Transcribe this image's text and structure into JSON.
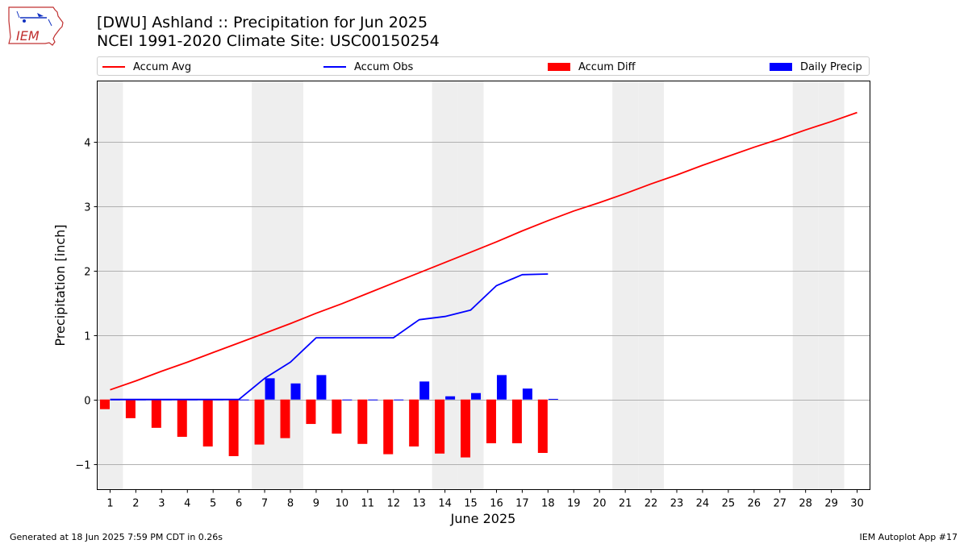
{
  "header": {
    "title_line1": "[DWU] Ashland :: Precipitation for Jun 2025",
    "title_line2": "NCEI 1991-2020 Climate Site: USC00150254"
  },
  "logo": {
    "text": "IEM",
    "icon": "iowa-state-outline-logo"
  },
  "footer": {
    "left": "Generated at 18 Jun 2025 7:59 PM CDT in 0.26s",
    "right": "IEM Autoplot App #17"
  },
  "colors": {
    "accum_avg": "#ff0000",
    "accum_obs": "#0000ff",
    "accum_diff": "#ff0000",
    "daily_precip": "#0000ff",
    "weekend_shading": "#eeeeee",
    "grid": "#b0b0b0"
  },
  "chart_data": {
    "type": "bar",
    "title": "[DWU] Ashland :: Precipitation for Jun 2025",
    "subtitle": "NCEI 1991-2020 Climate Site: USC00150254",
    "xlabel": "June 2025",
    "ylabel": "Precipitation [inch]",
    "xlim": [
      0.5,
      30.5
    ],
    "ylim": [
      -1.4,
      4.95
    ],
    "yticks": [
      -1,
      0,
      1,
      2,
      3,
      4
    ],
    "ytick_labels": [
      "−1",
      "0",
      "1",
      "2",
      "3",
      "4"
    ],
    "days": [
      1,
      2,
      3,
      4,
      5,
      6,
      7,
      8,
      9,
      10,
      11,
      12,
      13,
      14,
      15,
      16,
      17,
      18,
      19,
      20,
      21,
      22,
      23,
      24,
      25,
      26,
      27,
      28,
      29,
      30
    ],
    "grid": "y",
    "legend_position": "top",
    "weekend_days": [
      1,
      7,
      8,
      14,
      15,
      21,
      22,
      28,
      29
    ],
    "series": [
      {
        "name": "Accum Avg",
        "kind": "line",
        "values": [
          0.15,
          0.29,
          0.44,
          0.58,
          0.73,
          0.88,
          1.03,
          1.18,
          1.34,
          1.49,
          1.65,
          1.81,
          1.97,
          2.13,
          2.29,
          2.45,
          2.62,
          2.78,
          2.93,
          3.06,
          3.2,
          3.35,
          3.49,
          3.64,
          3.78,
          3.92,
          4.05,
          4.19,
          4.32,
          4.46
        ]
      },
      {
        "name": "Accum Obs",
        "kind": "line",
        "values": [
          0,
          0,
          0,
          0,
          0,
          0,
          0.33,
          0.58,
          0.96,
          0.96,
          0.96,
          0.96,
          1.24,
          1.29,
          1.39,
          1.77,
          1.94,
          1.95
        ]
      },
      {
        "name": "Accum Diff",
        "kind": "bar",
        "values": [
          -0.15,
          -0.29,
          -0.44,
          -0.58,
          -0.73,
          -0.88,
          -0.7,
          -0.6,
          -0.38,
          -0.53,
          -0.69,
          -0.85,
          -0.73,
          -0.84,
          -0.9,
          -0.68,
          -0.68,
          -0.83
        ]
      },
      {
        "name": "Daily Precip",
        "kind": "bar",
        "values": [
          0,
          0,
          0,
          0,
          0,
          0,
          0.33,
          0.25,
          0.38,
          0,
          0,
          0,
          0.28,
          0.05,
          0.1,
          0.38,
          0.17,
          0.01
        ]
      }
    ]
  }
}
